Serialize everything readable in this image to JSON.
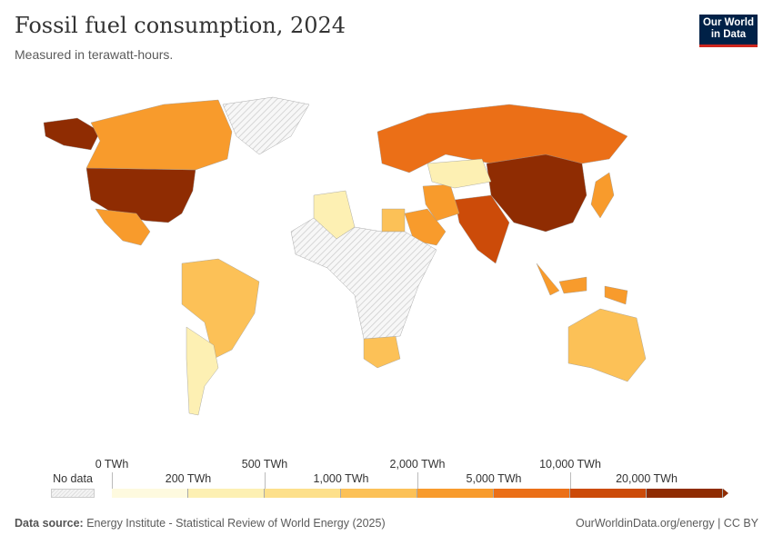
{
  "header": {
    "title": "Fossil fuel consumption, 2024",
    "subtitle": "Measured in terawatt-hours.",
    "logo": "Our World in Data"
  },
  "legend": {
    "no_data_label": "No data",
    "upper_labels": [
      "0 TWh",
      "500 TWh",
      "2,000 TWh",
      "10,000 TWh"
    ],
    "lower_labels": [
      "200 TWh",
      "1,000 TWh",
      "5,000 TWh",
      "20,000 TWh"
    ],
    "bins": [
      {
        "range": "0–200 TWh",
        "color": "#fefadf"
      },
      {
        "range": "200–500 TWh",
        "color": "#fdf0b3"
      },
      {
        "range": "500–1,000 TWh",
        "color": "#fde08b"
      },
      {
        "range": "1,000–2,000 TWh",
        "color": "#fcc157"
      },
      {
        "range": "2,000–5,000 TWh",
        "color": "#f89b2c"
      },
      {
        "range": "5,000–10,000 TWh",
        "color": "#eb6f17"
      },
      {
        "range": "10,000–20,000 TWh",
        "color": "#cc4b09"
      },
      {
        "range": ">20,000 TWh",
        "color": "#8f2c02"
      }
    ]
  },
  "map_regions": [
    {
      "name": "United States",
      "bin": 7
    },
    {
      "name": "Canada",
      "bin": 4
    },
    {
      "name": "Mexico",
      "bin": 4
    },
    {
      "name": "Brazil",
      "bin": 3
    },
    {
      "name": "Argentina",
      "bin": 1
    },
    {
      "name": "Russia",
      "bin": 5
    },
    {
      "name": "China",
      "bin": 7
    },
    {
      "name": "India",
      "bin": 6
    },
    {
      "name": "Japan",
      "bin": 4
    },
    {
      "name": "Saudi Arabia",
      "bin": 4
    },
    {
      "name": "Iran",
      "bin": 4
    },
    {
      "name": "Australia",
      "bin": 3
    },
    {
      "name": "Indonesia",
      "bin": 4
    },
    {
      "name": "South Africa",
      "bin": 3
    },
    {
      "name": "Kazakhstan",
      "bin": 1
    },
    {
      "name": "Algeria",
      "bin": 1
    },
    {
      "name": "Egypt",
      "bin": 3
    },
    {
      "name": "Greenland",
      "bin": null
    },
    {
      "name": "Central Africa",
      "bin": null
    }
  ],
  "footer": {
    "source_label": "Data source:",
    "source": "Energy Institute - Statistical Review of World Energy (2025)",
    "url": "OurWorldinData.org/energy | CC BY"
  }
}
